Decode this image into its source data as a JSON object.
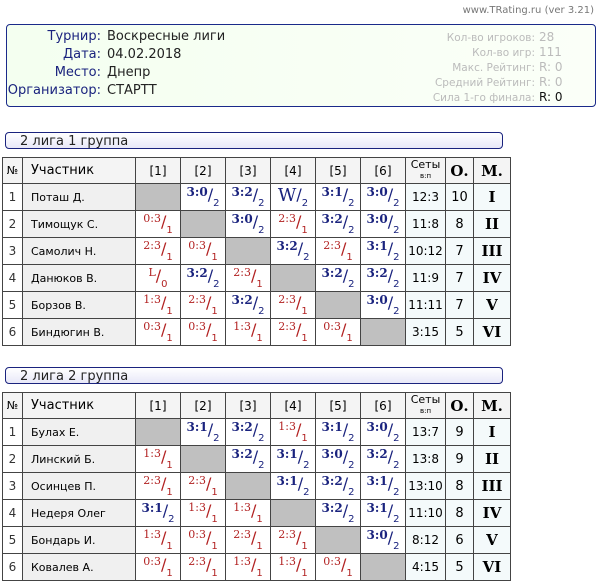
{
  "site": "www.TRating.ru (ver 3.21)",
  "info": {
    "fields": [
      {
        "label": "Турнир:",
        "value": "Воскресные лиги"
      },
      {
        "label": "Дата:",
        "value": "04.02.2018"
      },
      {
        "label": "Место:",
        "value": "Днепр"
      },
      {
        "label": "Организатор:",
        "value": "СТАРТТ"
      }
    ],
    "stats": [
      {
        "label": "Кол-во игроков:",
        "value": "28"
      },
      {
        "label": "Кол-во игр:",
        "value": "111"
      },
      {
        "label": "Макс. Рейтинг:",
        "value": "R:  0"
      },
      {
        "label": "Средний Рейтинг:",
        "value": "R:  0"
      },
      {
        "label": "Сила 1-го финала:",
        "value": "R:  0"
      }
    ]
  },
  "headers": {
    "num": "№",
    "name": "Участник",
    "cols": [
      "[1]",
      "[2]",
      "[3]",
      "[4]",
      "[5]",
      "[6]"
    ],
    "sets": "Сеты",
    "sets_sub": "в:п",
    "points": "О.",
    "place": "М."
  },
  "colors": {
    "win": "#1a237e",
    "loss": "#b22222",
    "diagonal": "#c0c0c0"
  },
  "groups": [
    {
      "title": "2 лига 1 группа",
      "rows": [
        {
          "n": "1",
          "name": "Поташ Д.",
          "res": [
            null,
            [
              "3:0",
              "2"
            ],
            [
              "3:2",
              "2"
            ],
            [
              "W",
              "2"
            ],
            [
              "3:1",
              "2"
            ],
            [
              "3:0",
              "2"
            ]
          ],
          "sets": "12:3",
          "pts": "10",
          "place": "I"
        },
        {
          "n": "2",
          "name": "Тимощук С.",
          "res": [
            [
              "0:3",
              "1"
            ],
            null,
            [
              "3:0",
              "2"
            ],
            [
              "2:3",
              "1"
            ],
            [
              "3:2",
              "2"
            ],
            [
              "3:0",
              "2"
            ]
          ],
          "sets": "11:8",
          "pts": "8",
          "place": "II"
        },
        {
          "n": "3",
          "name": "Самолич Н.",
          "res": [
            [
              "2:3",
              "1"
            ],
            [
              "0:3",
              "1"
            ],
            null,
            [
              "3:2",
              "2"
            ],
            [
              "2:3",
              "1"
            ],
            [
              "3:1",
              "2"
            ]
          ],
          "sets": "10:12",
          "pts": "7",
          "place": "III"
        },
        {
          "n": "4",
          "name": "Данюков В.",
          "res": [
            [
              "L",
              "0"
            ],
            [
              "3:2",
              "2"
            ],
            [
              "2:3",
              "1"
            ],
            null,
            [
              "3:2",
              "2"
            ],
            [
              "3:2",
              "2"
            ]
          ],
          "sets": "11:9",
          "pts": "7",
          "place": "IV"
        },
        {
          "n": "5",
          "name": "Борзов В.",
          "res": [
            [
              "1:3",
              "1"
            ],
            [
              "2:3",
              "1"
            ],
            [
              "3:2",
              "2"
            ],
            [
              "2:3",
              "1"
            ],
            null,
            [
              "3:0",
              "2"
            ]
          ],
          "sets": "11:11",
          "pts": "7",
          "place": "V"
        },
        {
          "n": "6",
          "name": "Биндюгин В.",
          "res": [
            [
              "0:3",
              "1"
            ],
            [
              "0:3",
              "1"
            ],
            [
              "1:3",
              "1"
            ],
            [
              "2:3",
              "1"
            ],
            [
              "0:3",
              "1"
            ],
            null
          ],
          "sets": "3:15",
          "pts": "5",
          "place": "VI"
        }
      ]
    },
    {
      "title": "2 лига 2 группа",
      "rows": [
        {
          "n": "1",
          "name": "Булах Е.",
          "res": [
            null,
            [
              "3:1",
              "2"
            ],
            [
              "3:2",
              "2"
            ],
            [
              "1:3",
              "1"
            ],
            [
              "3:1",
              "2"
            ],
            [
              "3:0",
              "2"
            ]
          ],
          "sets": "13:7",
          "pts": "9",
          "place": "I"
        },
        {
          "n": "2",
          "name": "Линский Б.",
          "res": [
            [
              "1:3",
              "1"
            ],
            null,
            [
              "3:2",
              "2"
            ],
            [
              "3:1",
              "2"
            ],
            [
              "3:0",
              "2"
            ],
            [
              "3:2",
              "2"
            ]
          ],
          "sets": "13:8",
          "pts": "9",
          "place": "II"
        },
        {
          "n": "3",
          "name": "Осинцев П.",
          "res": [
            [
              "2:3",
              "1"
            ],
            [
              "2:3",
              "1"
            ],
            null,
            [
              "3:1",
              "2"
            ],
            [
              "3:2",
              "2"
            ],
            [
              "3:1",
              "2"
            ]
          ],
          "sets": "13:10",
          "pts": "8",
          "place": "III"
        },
        {
          "n": "4",
          "name": "Недеря Олег",
          "res": [
            [
              "3:1",
              "2"
            ],
            [
              "1:3",
              "1"
            ],
            [
              "1:3",
              "1"
            ],
            null,
            [
              "3:2",
              "2"
            ],
            [
              "3:1",
              "2"
            ]
          ],
          "sets": "11:10",
          "pts": "8",
          "place": "IV"
        },
        {
          "n": "5",
          "name": "Бондарь И.",
          "res": [
            [
              "1:3",
              "1"
            ],
            [
              "0:3",
              "1"
            ],
            [
              "2:3",
              "1"
            ],
            [
              "2:3",
              "1"
            ],
            null,
            [
              "3:0",
              "2"
            ]
          ],
          "sets": "8:12",
          "pts": "6",
          "place": "V"
        },
        {
          "n": "6",
          "name": "Ковалев А.",
          "res": [
            [
              "0:3",
              "1"
            ],
            [
              "2:3",
              "1"
            ],
            [
              "1:3",
              "1"
            ],
            [
              "1:3",
              "1"
            ],
            [
              "0:3",
              "1"
            ],
            null
          ],
          "sets": "4:15",
          "pts": "5",
          "place": "VI"
        }
      ]
    }
  ]
}
